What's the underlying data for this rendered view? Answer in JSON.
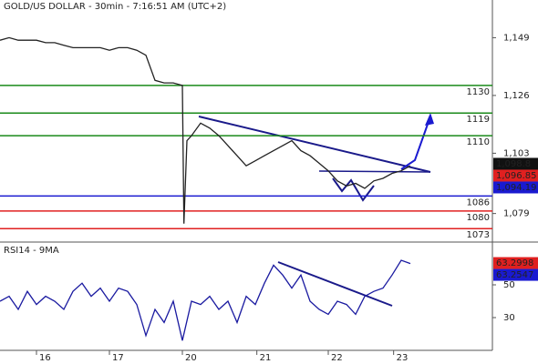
{
  "chart_data": [
    {
      "type": "line",
      "title": "GOLD/US DOLLAR - 30min - 7:16:51 AM (UTC+2)",
      "x": [
        0,
        6,
        12,
        18,
        24,
        30,
        36,
        42,
        48,
        54,
        60,
        66,
        72,
        78,
        84,
        90,
        96,
        102,
        108,
        114,
        120,
        121,
        123,
        126,
        132,
        138,
        144,
        150,
        156,
        162,
        168,
        174,
        180,
        186,
        192,
        198,
        204,
        210,
        216,
        222,
        228,
        234,
        240,
        246,
        252,
        258,
        264,
        270
      ],
      "series": [
        {
          "color": "#222222",
          "values": [
            1148,
            1149,
            1148,
            1148,
            1148,
            1147,
            1147,
            1146,
            1145,
            1145,
            1145,
            1145,
            1144,
            1145,
            1145,
            1144,
            1142,
            1132,
            1131,
            1131,
            1130,
            1075,
            1108,
            1110,
            1115,
            1113,
            1110,
            1106,
            1102,
            1098,
            1100,
            1102,
            1104,
            1106,
            1108,
            1104,
            1102,
            1099,
            1096,
            1092,
            1090,
            1091,
            1089,
            1092,
            1093,
            1095,
            1096,
            1098
          ]
        }
      ],
      "xlim": [
        0,
        324
      ],
      "ylim": [
        1068,
        1164
      ],
      "yticks": [
        {
          "value": 1149,
          "label": "1,149"
        },
        {
          "value": 1126,
          "label": "1,126"
        },
        {
          "value": 1103,
          "label": "1,103"
        },
        {
          "value": 1079,
          "label": "1,079"
        }
      ],
      "levels": [
        {
          "value": 1130,
          "color": "#1a8a1a"
        },
        {
          "value": 1119,
          "color": "#1a8a1a"
        },
        {
          "value": 1110,
          "color": "#1a8a1a"
        },
        {
          "value": 1086,
          "color": "#1a1ad0"
        },
        {
          "value": 1080,
          "color": "#e02020"
        },
        {
          "value": 1073,
          "color": "#e02020"
        }
      ],
      "tags": [
        {
          "value": 1098.8,
          "label": "1,098.8",
          "color": "#111111"
        },
        {
          "value": 1096.85,
          "label": "1,096.85",
          "color": "#e02020"
        },
        {
          "value": 1094.19,
          "label": "1,094.19",
          "color": "#1a1ad0"
        }
      ]
    },
    {
      "type": "line",
      "title": "RSI14 - 9MA",
      "x": [
        0,
        6,
        12,
        18,
        24,
        30,
        36,
        42,
        48,
        54,
        60,
        66,
        72,
        78,
        84,
        90,
        96,
        102,
        108,
        114,
        120,
        126,
        132,
        138,
        144,
        150,
        156,
        162,
        168,
        174,
        180,
        186,
        192,
        198,
        204,
        210,
        216,
        222,
        228,
        234,
        240,
        246,
        252,
        258,
        264,
        270
      ],
      "series": [
        {
          "color": "#1a1aa0",
          "values": [
            40,
            43,
            35,
            46,
            38,
            43,
            40,
            35,
            46,
            51,
            43,
            48,
            40,
            48,
            46,
            38,
            19,
            35,
            27,
            40,
            16,
            40,
            38,
            43,
            35,
            40,
            27,
            43,
            38,
            51,
            62,
            56,
            48,
            56,
            40,
            35,
            32,
            40,
            38,
            32,
            43,
            46,
            48,
            56,
            65,
            63
          ]
        }
      ],
      "xlim": [
        0,
        324
      ],
      "ylim": [
        10,
        75
      ],
      "yticks": [
        50,
        30
      ],
      "xticks": [
        {
          "value": 24,
          "label": "16"
        },
        {
          "value": 72,
          "label": "17"
        },
        {
          "value": 120,
          "label": "20"
        },
        {
          "value": 169,
          "label": "21"
        },
        {
          "value": 216,
          "label": "22"
        },
        {
          "value": 259,
          "label": "23"
        }
      ],
      "tags": [
        {
          "value": 63.2998,
          "label": "63.2998",
          "color": "#e02020"
        },
        {
          "value": 63.2547,
          "label": "63.2547",
          "color": "#1a1ad0"
        }
      ]
    }
  ]
}
